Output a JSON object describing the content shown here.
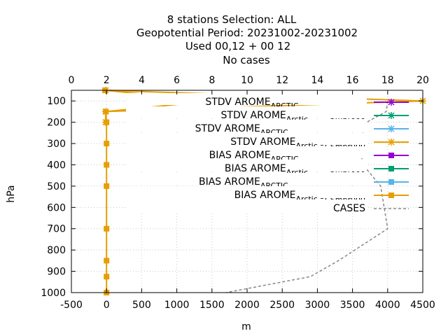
{
  "chart_data": {
    "type": "line",
    "title_lines": [
      "8 stations Selection: ALL",
      "Geopotential  Period: 20231002-20231002",
      "Used  00,12  + 00 12",
      "No cases"
    ],
    "xlabel": "m",
    "ylabel": "hPa",
    "xlim": [
      -500,
      4500
    ],
    "x2lim": [
      0,
      20
    ],
    "ylim": [
      1000,
      50
    ],
    "x_ticks": [
      "-500",
      "0",
      "500",
      "1000",
      "1500",
      "2000",
      "2500",
      "3000",
      "3500",
      "4000",
      "4500"
    ],
    "x2_ticks": [
      "0",
      "2",
      "4",
      "6",
      "8",
      "10",
      "12",
      "14",
      "16",
      "18",
      "20"
    ],
    "y_ticks": [
      "100",
      "200",
      "300",
      "400",
      "500",
      "600",
      "700",
      "800",
      "900",
      "1000"
    ],
    "legend_position": "top-right",
    "series": [
      {
        "name": "STDV AROME_ARCTIC_preop2_v_5mbr000",
        "color": "#9400d3",
        "marker": "x",
        "dash": "solid",
        "axis": "top",
        "x": [],
        "y": []
      },
      {
        "name": "STDV AROME_Arctic_preop2mbr000",
        "color": "#009e73",
        "marker": "x",
        "dash": "solid",
        "axis": "top",
        "x": [],
        "y": []
      },
      {
        "name": "STDV AROME_ARCTIC_preop2_v_5_CSmbr000",
        "color": "#56b4e9",
        "marker": "x",
        "dash": "solid",
        "axis": "top",
        "x": [],
        "y": []
      },
      {
        "name": "STDV AROME_Arctic_prodmbr000",
        "color": "#e69f00",
        "marker": "x",
        "dash": "solid",
        "axis": "top",
        "x": [
          1.95,
          20,
          1.95,
          1.95
        ],
        "y": [
          50,
          100,
          150,
          200
        ]
      },
      {
        "name": "BIAS AROME_ARCTIC_preop2_v_5mbr000",
        "color": "#9400d3",
        "marker": "sq",
        "dash": "solid",
        "axis": "bottom",
        "x": [],
        "y": []
      },
      {
        "name": "BIAS AROME_Arctic_preop2mbr000",
        "color": "#009e73",
        "marker": "sq",
        "dash": "solid",
        "axis": "bottom",
        "x": [],
        "y": []
      },
      {
        "name": "BIAS AROME_ARCTIC_preop2_v_5_CSmbr000",
        "color": "#56b4e9",
        "marker": "sq",
        "dash": "solid",
        "axis": "bottom",
        "x": [],
        "y": []
      },
      {
        "name": "BIAS AROME_Arctic_prodmbr000",
        "color": "#e69f00",
        "marker": "sq",
        "dash": "solid",
        "axis": "bottom",
        "x": [
          -20,
          1500,
          -10,
          0,
          0,
          0,
          0,
          0,
          0,
          0,
          0
        ],
        "y": [
          50,
          100,
          150,
          200,
          300,
          400,
          500,
          700,
          850,
          925,
          1000
        ]
      },
      {
        "name": "CASES",
        "color": "#888888",
        "marker": "none",
        "dash": "dashed",
        "axis": "bottom",
        "x": [
          4000,
          3980,
          3700,
          3600,
          3650,
          3900,
          4000,
          3300,
          2900,
          1700
        ],
        "y": [
          100,
          150,
          200,
          300,
          400,
          500,
          700,
          850,
          925,
          1000
        ]
      }
    ]
  }
}
